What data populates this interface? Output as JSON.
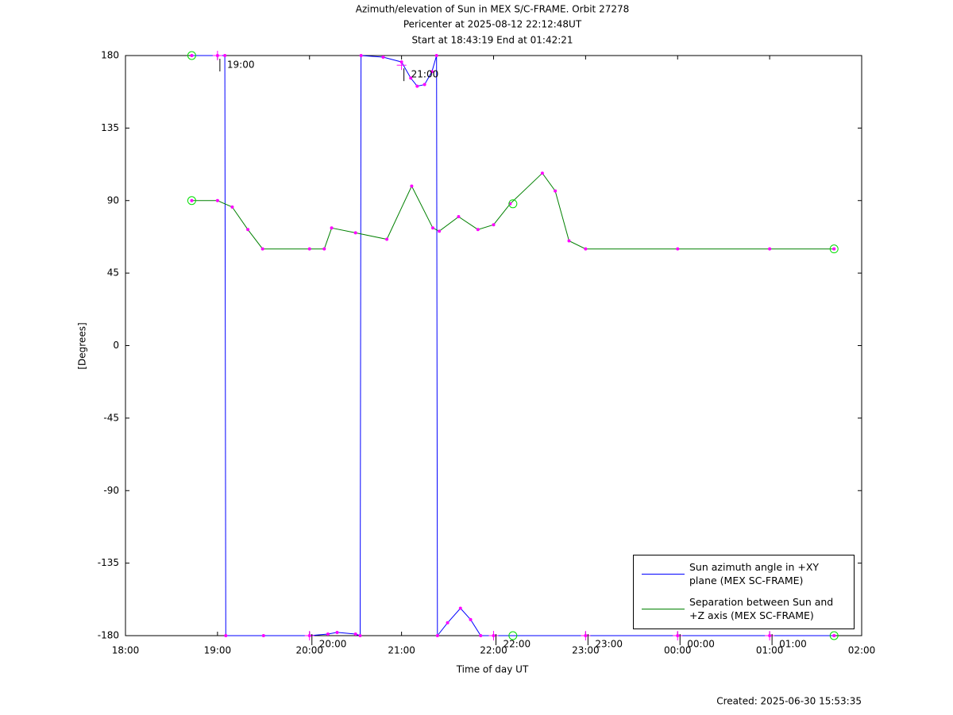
{
  "chart_data": {
    "type": "line",
    "title": "Azimuth/elevation of Sun in MEX S/C-FRAME.  Orbit 27278",
    "subtitle": [
      "Pericenter at 2025-08-12 22:12:48UT",
      "Start at 18:43:19 End at 01:42:21"
    ],
    "x_label": "Time of day UT",
    "y_label": "[Degrees]",
    "footer": "Created: 2025-06-30 15:53:35",
    "xlim": [
      18,
      26
    ],
    "xticks": [
      {
        "value": 18,
        "label": "18:00"
      },
      {
        "value": 19,
        "label": "19:00"
      },
      {
        "value": 20,
        "label": "20:00"
      },
      {
        "value": 21,
        "label": "21:00"
      },
      {
        "value": 22,
        "label": "22:00"
      },
      {
        "value": 23,
        "label": "23:00"
      },
      {
        "value": 24,
        "label": "00:00"
      },
      {
        "value": 25,
        "label": "01:00"
      },
      {
        "value": 26,
        "label": "02:00"
      }
    ],
    "ylim": [
      -180,
      180
    ],
    "yticks": [
      -180,
      -135,
      -90,
      -45,
      0,
      45,
      90,
      135,
      180
    ],
    "marker_color": "#ff00ff",
    "legend": "lower right",
    "series": [
      {
        "name": "Sun azimuth angle in +XY plane (MEX SC-FRAME)",
        "color": "#0000ff",
        "x": [
          18.72,
          19.0,
          19.08,
          19.09,
          19.5,
          20.0,
          20.2,
          20.3,
          20.5,
          20.55,
          20.56,
          20.8,
          21.0,
          21.1,
          21.17,
          21.25,
          21.33,
          21.38,
          21.39,
          21.5,
          21.64,
          21.75,
          21.86,
          22.0,
          23.0,
          24.0,
          25.0,
          25.7
        ],
        "values": [
          180,
          180,
          180,
          -180,
          -180,
          -180,
          -179,
          -178,
          -179,
          -180,
          180,
          179,
          176,
          166,
          161,
          162,
          170,
          180,
          -180,
          -172,
          -163,
          -170,
          -180,
          -180,
          -180,
          -180,
          -180,
          -180
        ]
      },
      {
        "name": "Separation between Sun and +Z axis (MEX SC-FRAME)",
        "color": "#008000",
        "x": [
          18.72,
          19.0,
          19.16,
          19.33,
          19.49,
          20.0,
          20.16,
          20.24,
          20.5,
          20.84,
          21.11,
          21.34,
          21.41,
          21.62,
          21.83,
          22.0,
          22.18,
          22.53,
          22.67,
          22.82,
          23.0,
          24.0,
          25.0,
          25.7
        ],
        "values": [
          90,
          90,
          86,
          72,
          60,
          60,
          60,
          73,
          70,
          66,
          99,
          73,
          71,
          80,
          72,
          75,
          88,
          107,
          96,
          65,
          60,
          60,
          60,
          60
        ]
      }
    ],
    "pericenter_markers": [
      {
        "x": 22.21,
        "y": 88
      },
      {
        "x": 22.21,
        "y": -180
      }
    ],
    "annotations": [
      {
        "text": "19:00",
        "x": 19.0,
        "y": 180
      },
      {
        "text": "21:00",
        "x": 21.0,
        "y": 174
      },
      {
        "text": "20:00",
        "x": 20.0,
        "y": -180
      },
      {
        "text": "22:00",
        "x": 22.0,
        "y": -180
      },
      {
        "text": "23:00",
        "x": 23.0,
        "y": -180
      },
      {
        "text": "00:00",
        "x": 24.0,
        "y": -180
      },
      {
        "text": "01:00",
        "x": 25.0,
        "y": -180
      }
    ]
  }
}
